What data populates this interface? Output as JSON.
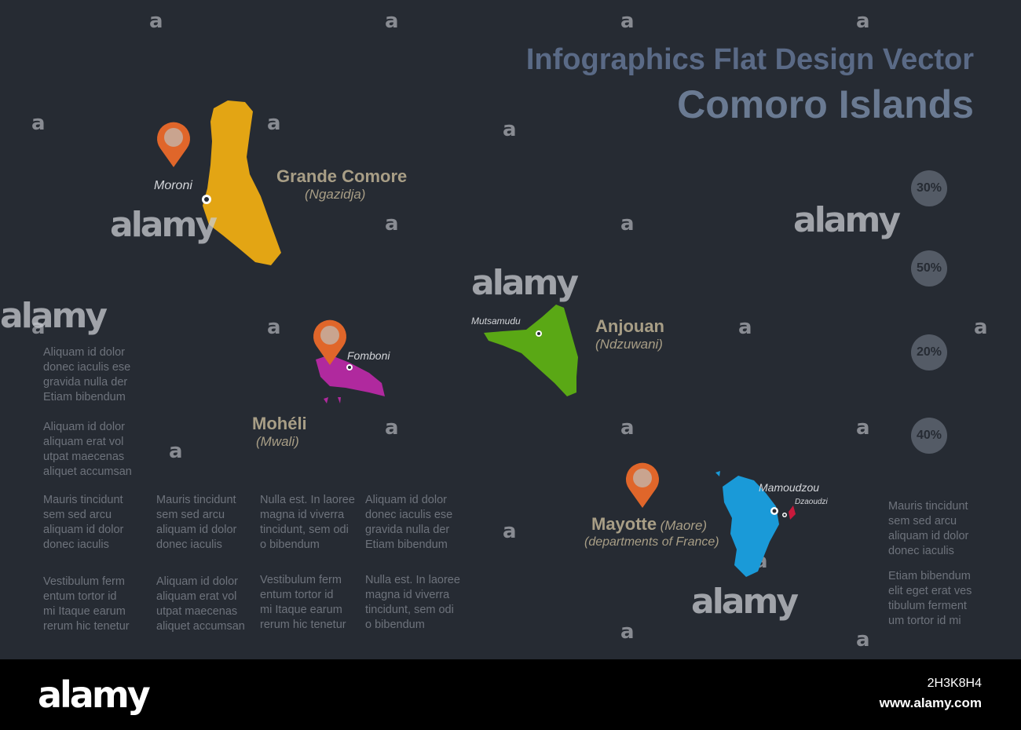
{
  "header": {
    "subtitle": "Infographics Flat Design Vector",
    "title": "Comoro Islands"
  },
  "colors": {
    "background": "#262b33",
    "grande_comore": "#e3a514",
    "moheli": "#b0299e",
    "anjouan": "#5aa815",
    "mayotte": "#1a9ad8",
    "dzaoudzi": "#c81a3c",
    "pin": "#e0662a",
    "pin_center": "#c9a48f"
  },
  "islands": [
    {
      "name": "Grande Comore",
      "alt": "(Ngazidja)",
      "capital": "Moroni"
    },
    {
      "name": "Mohéli",
      "alt": "(Mwali)",
      "capital": "Fomboni"
    },
    {
      "name": "Anjouan",
      "alt": "(Ndzuwani)",
      "capital": "Mutsamudu"
    },
    {
      "name": "Mayotte",
      "alt": "(Maore)",
      "note": "(departments of France)",
      "capital": "Mamoudzou",
      "capital2": "Dzaoudzi"
    }
  ],
  "percentages": [
    "30%",
    "50%",
    "20%",
    "40%"
  ],
  "text_blocks": {
    "left": [
      "Aliquam id dolor\ndonec iaculis  ese\ngravida nulla der\nEtiam bibendum",
      "Aliquam id dolor\naliquam erat vol\nutpat maecenas\naliquet accumsan"
    ],
    "row1": [
      "Mauris tincidunt\nsem sed arcu\naliquam id dolor\ndonec iaculis",
      "Mauris tincidunt\nsem sed arcu\naliquam id dolor\ndonec iaculis",
      "Nulla est. In laoree\nmagna id viverra\ntincidunt, sem odi\no bibendum",
      "Aliquam id dolor\ndonec iaculis  ese\ngravida nulla der\nEtiam bibendum"
    ],
    "row2": [
      "Vestibulum ferm\nentum tortor id\nmi Itaque earum\nrerum hic tenetur",
      "Aliquam id dolor\naliquam erat vol\nutpat maecenas\naliquet accumsan",
      "Vestibulum ferm\nentum tortor id\nmi Itaque earum\nrerum hic tenetur",
      "Nulla est. In laoree\nmagna id viverra\ntincidunt, sem odi\no bibendum"
    ],
    "right": [
      "Mauris tincidunt\nsem sed arcu\naliquam id dolor\ndonec iaculis",
      "Etiam bibendum\nelit eget erat ves\ntibulum ferment\num tortor id mi"
    ]
  },
  "watermark": {
    "mark": "a",
    "word": "alamy"
  },
  "footer": {
    "logo": "alamy",
    "image_id": "2H3K8H4",
    "url": "www.alamy.com"
  }
}
